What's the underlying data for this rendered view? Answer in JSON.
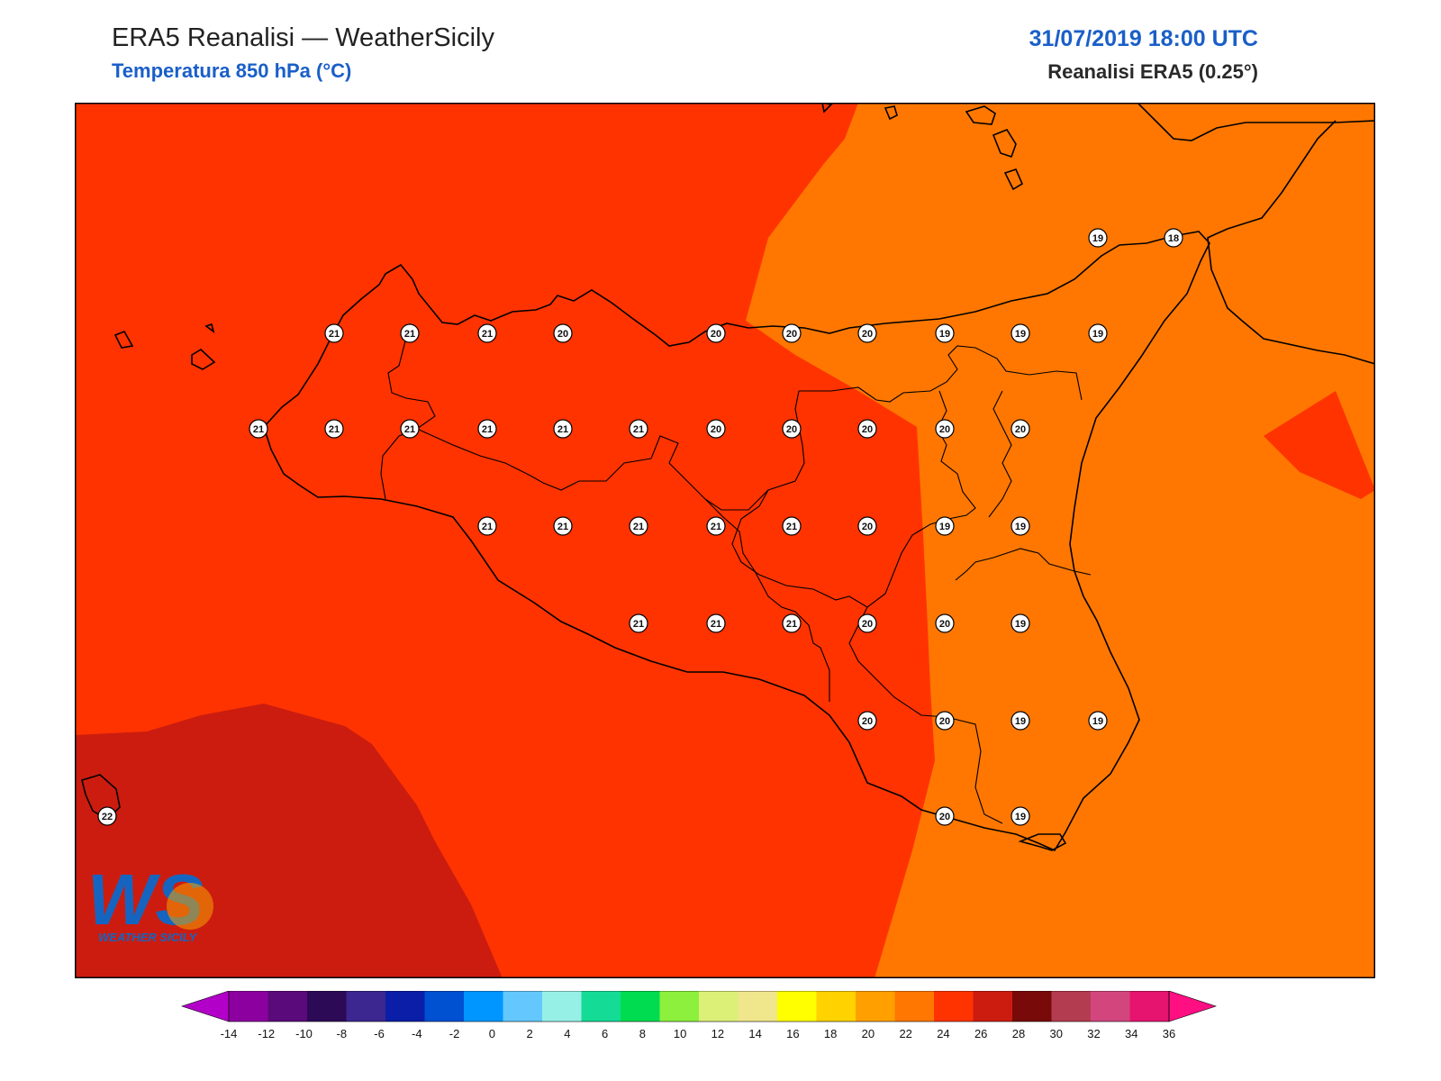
{
  "header": {
    "title": "ERA5 Reanalisi — WeatherSicily",
    "subtitle": "Temperatura 850 hPa (°C)",
    "datetime": "31/07/2019 18:00 UTC",
    "source": "Reanalisi ERA5 (0.25°)"
  },
  "colors": {
    "t_above_22": "#ff3300",
    "t_18_20": "#ff7700",
    "t_above_24": "#cc1c10",
    "coastline": "#000000"
  },
  "map": {
    "variable": "Temperatura 850 hPa",
    "units": "°C",
    "stations": [
      {
        "id": "s1",
        "value": "19"
      },
      {
        "id": "s2",
        "value": "18"
      },
      {
        "id": "s3",
        "value": "21"
      },
      {
        "id": "s4",
        "value": "21"
      },
      {
        "id": "s5",
        "value": "21"
      },
      {
        "id": "s6",
        "value": "20"
      },
      {
        "id": "s7",
        "value": "20"
      },
      {
        "id": "s8",
        "value": "20"
      },
      {
        "id": "s9",
        "value": "20"
      },
      {
        "id": "s10",
        "value": "19"
      },
      {
        "id": "s11",
        "value": "19"
      },
      {
        "id": "s12",
        "value": "19"
      },
      {
        "id": "s13",
        "value": "21"
      },
      {
        "id": "s14",
        "value": "21"
      },
      {
        "id": "s15",
        "value": "21"
      },
      {
        "id": "s16",
        "value": "21"
      },
      {
        "id": "s17",
        "value": "21"
      },
      {
        "id": "s18",
        "value": "21"
      },
      {
        "id": "s19",
        "value": "20"
      },
      {
        "id": "s20",
        "value": "20"
      },
      {
        "id": "s21",
        "value": "20"
      },
      {
        "id": "s22",
        "value": "20"
      },
      {
        "id": "s23",
        "value": "20"
      },
      {
        "id": "s24",
        "value": "21"
      },
      {
        "id": "s25",
        "value": "21"
      },
      {
        "id": "s26",
        "value": "21"
      },
      {
        "id": "s27",
        "value": "21"
      },
      {
        "id": "s28",
        "value": "21"
      },
      {
        "id": "s29",
        "value": "20"
      },
      {
        "id": "s30",
        "value": "19"
      },
      {
        "id": "s31",
        "value": "19"
      },
      {
        "id": "s32",
        "value": "21"
      },
      {
        "id": "s33",
        "value": "21"
      },
      {
        "id": "s34",
        "value": "21"
      },
      {
        "id": "s35",
        "value": "20"
      },
      {
        "id": "s36",
        "value": "20"
      },
      {
        "id": "s37",
        "value": "19"
      },
      {
        "id": "s38",
        "value": "20"
      },
      {
        "id": "s39",
        "value": "20"
      },
      {
        "id": "s40",
        "value": "19"
      },
      {
        "id": "s41",
        "value": "19"
      },
      {
        "id": "s42",
        "value": "22"
      },
      {
        "id": "s43",
        "value": "20"
      },
      {
        "id": "s44",
        "value": "19"
      }
    ]
  },
  "logo": {
    "mark": "WS",
    "text": "WEATHER SICILY"
  },
  "colorbar": {
    "ticks": [
      "-14",
      "-12",
      "-10",
      "-8",
      "-6",
      "-4",
      "-2",
      "0",
      "2",
      "4",
      "6",
      "8",
      "10",
      "12",
      "14",
      "16",
      "18",
      "20",
      "22",
      "24",
      "26",
      "28",
      "30",
      "32",
      "34",
      "36"
    ],
    "colors": [
      "#b300c8",
      "#8c00a0",
      "#5a0a7a",
      "#2c0a55",
      "#3c2690",
      "#0a1ea8",
      "#0050d2",
      "#0096ff",
      "#64c8ff",
      "#96f0e6",
      "#14dc96",
      "#00dc50",
      "#8cf03c",
      "#dcf078",
      "#f0e68c",
      "#ffff00",
      "#ffd200",
      "#ffa000",
      "#ff7700",
      "#ff3300",
      "#cc1c10",
      "#780a0a",
      "#b43c50",
      "#d2467d",
      "#e6146e",
      "#ff0f82"
    ]
  }
}
